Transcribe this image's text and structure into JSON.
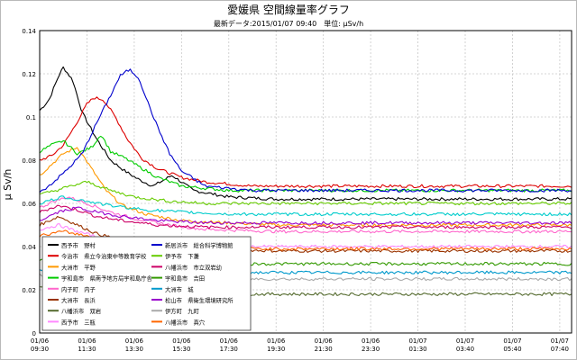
{
  "chart_data": {
    "type": "line",
    "title": "愛媛県 空間線量率グラフ",
    "subtitle": "最新データ:2015/01/07 09:40　単位: μSv/h",
    "ylabel": "μ Sv/h",
    "xlabel": "",
    "ylim": [
      0,
      0.14
    ],
    "yticks": [
      "0",
      "0.02",
      "0.04",
      "0.06",
      "0.08",
      "0.1",
      "0.12",
      "0.14"
    ],
    "x_range": [
      0,
      22.5
    ],
    "xticks": [
      {
        "h": 0,
        "line1": "01/06",
        "line2": "09:30"
      },
      {
        "h": 2,
        "line1": "01/06",
        "line2": "11:30"
      },
      {
        "h": 4,
        "line1": "01/06",
        "line2": "13:30"
      },
      {
        "h": 6,
        "line1": "01/06",
        "line2": "15:30"
      },
      {
        "h": 8,
        "line1": "01/06",
        "line2": "17:30"
      },
      {
        "h": 10,
        "line1": "01/06",
        "line2": "19:30"
      },
      {
        "h": 12,
        "line1": "01/06",
        "line2": "21:30"
      },
      {
        "h": 14,
        "line1": "01/06",
        "line2": "23:30"
      },
      {
        "h": 16,
        "line1": "01/07",
        "line2": "01:30"
      },
      {
        "h": 18,
        "line1": "01/07",
        "line2": "03:40"
      },
      {
        "h": 20,
        "line1": "01/07",
        "line2": "05:40"
      },
      {
        "h": 22,
        "line1": "01/07",
        "line2": "07:40"
      }
    ],
    "grid": true,
    "legend_position": "bottom-left",
    "series": [
      {
        "name": "西予市　野村",
        "color": "#000000",
        "x": [
          0,
          0.4,
          0.8,
          1.0,
          1.4,
          1.8,
          2.4,
          3.0,
          3.6,
          4.2,
          4.8,
          5.6,
          6.5,
          8,
          10,
          14,
          18,
          22.5
        ],
        "values": [
          0.103,
          0.108,
          0.119,
          0.123,
          0.117,
          0.102,
          0.09,
          0.08,
          0.075,
          0.071,
          0.068,
          0.073,
          0.066,
          0.063,
          0.062,
          0.062,
          0.062,
          0.062
        ]
      },
      {
        "name": "今治市　県立今治東中等教育学校",
        "color": "#dd0000",
        "x": [
          0,
          0.5,
          1.0,
          1.5,
          2.0,
          2.3,
          2.7,
          3.2,
          3.7,
          4.3,
          5.0,
          6.0,
          7.0,
          9.0,
          12,
          16,
          22.5
        ],
        "values": [
          0.08,
          0.082,
          0.087,
          0.096,
          0.106,
          0.109,
          0.108,
          0.1,
          0.09,
          0.081,
          0.076,
          0.072,
          0.07,
          0.068,
          0.068,
          0.068,
          0.068
        ]
      },
      {
        "name": "大洲市　平野",
        "color": "#ff9900",
        "x": [
          0,
          0.5,
          1.0,
          1.6,
          2.2,
          2.8,
          3.5,
          4.5,
          6.0,
          8.0,
          10,
          14,
          18,
          22.5
        ],
        "values": [
          0.073,
          0.078,
          0.083,
          0.086,
          0.076,
          0.066,
          0.059,
          0.055,
          0.052,
          0.051,
          0.05,
          0.05,
          0.05,
          0.05
        ]
      },
      {
        "name": "宇和島市　県南予地方局宇和島庁舎",
        "color": "#00cc00",
        "x": [
          0,
          0.5,
          1.0,
          1.6,
          2.2,
          2.6,
          3.0,
          3.6,
          4.2,
          5.0,
          6.0,
          8.0,
          12,
          16,
          22.5
        ],
        "values": [
          0.084,
          0.087,
          0.089,
          0.083,
          0.086,
          0.092,
          0.084,
          0.081,
          0.077,
          0.072,
          0.068,
          0.066,
          0.066,
          0.066,
          0.066
        ]
      },
      {
        "name": "内子町　内子",
        "color": "#ff66cc",
        "x": [
          0,
          0.6,
          1.2,
          2.0,
          3.0,
          4.0,
          5.5,
          7.0,
          10,
          14,
          22.5
        ],
        "values": [
          0.058,
          0.061,
          0.063,
          0.06,
          0.056,
          0.053,
          0.05,
          0.048,
          0.047,
          0.047,
          0.047
        ]
      },
      {
        "name": "大洲市　長浜",
        "color": "#993300",
        "x": [
          0,
          0.8,
          1.6,
          2.4,
          3.5,
          5.0,
          7.0,
          10,
          14,
          22.5
        ],
        "values": [
          0.05,
          0.054,
          0.05,
          0.046,
          0.043,
          0.04,
          0.039,
          0.038,
          0.038,
          0.038
        ]
      },
      {
        "name": "八幡浜市　双岩",
        "color": "#556b2f",
        "x": [
          0,
          1.0,
          2.0,
          3.0,
          4.5,
          6.0,
          8,
          12,
          16,
          22.5
        ],
        "values": [
          0.022,
          0.021,
          0.02,
          0.019,
          0.018,
          0.018,
          0.018,
          0.018,
          0.018,
          0.018
        ]
      },
      {
        "name": "西予市　三瓶",
        "color": "#ff88ff",
        "x": [
          0,
          0.8,
          1.6,
          2.6,
          4.0,
          6.0,
          9.0,
          14,
          22.5
        ],
        "values": [
          0.048,
          0.05,
          0.047,
          0.044,
          0.042,
          0.041,
          0.04,
          0.04,
          0.04
        ]
      },
      {
        "name": "新居浜市　総合科学博物館",
        "color": "#0000cc",
        "x": [
          0,
          0.6,
          1.2,
          1.8,
          2.4,
          3.0,
          3.4,
          3.8,
          4.2,
          4.6,
          5.0,
          5.5,
          6.0,
          7.0,
          9.0,
          12,
          16,
          22.5
        ],
        "values": [
          0.065,
          0.07,
          0.076,
          0.083,
          0.097,
          0.11,
          0.119,
          0.122,
          0.118,
          0.106,
          0.095,
          0.083,
          0.075,
          0.068,
          0.066,
          0.066,
          0.066,
          0.066
        ]
      },
      {
        "name": "伊予市　下灘",
        "color": "#66cc00",
        "x": [
          0,
          1.0,
          2.0,
          3.0,
          4.0,
          5.5,
          7.0,
          10,
          14,
          22.5
        ],
        "values": [
          0.064,
          0.067,
          0.07,
          0.066,
          0.063,
          0.061,
          0.06,
          0.06,
          0.06,
          0.06
        ]
      },
      {
        "name": "八幡浜市　市立双岩幼",
        "color": "#cc0066",
        "x": [
          0,
          0.8,
          1.6,
          2.4,
          3.5,
          5.0,
          7.0,
          10,
          14,
          22.5
        ],
        "values": [
          0.056,
          0.059,
          0.057,
          0.054,
          0.052,
          0.05,
          0.049,
          0.049,
          0.049,
          0.049
        ]
      },
      {
        "name": "宇和島市　吉田",
        "color": "#339900",
        "x": [
          0,
          1.0,
          2.0,
          3.0,
          4.5,
          6.0,
          8,
          12,
          16,
          22.5
        ],
        "values": [
          0.034,
          0.035,
          0.034,
          0.033,
          0.032,
          0.032,
          0.032,
          0.032,
          0.032,
          0.032
        ]
      },
      {
        "name": "大洲市　城",
        "color": "#0099cc",
        "x": [
          0,
          1.0,
          2.0,
          3.0,
          4.5,
          6.0,
          8,
          12,
          16,
          22.5
        ],
        "values": [
          0.029,
          0.03,
          0.029,
          0.028,
          0.028,
          0.028,
          0.028,
          0.028,
          0.028,
          0.028
        ]
      },
      {
        "name": "松山市　県衛生環境研究所",
        "color": "#9900cc",
        "x": [
          0,
          0.8,
          1.6,
          2.4,
          3.5,
          5.0,
          7.0,
          10,
          14,
          22.5
        ],
        "values": [
          0.052,
          0.056,
          0.058,
          0.056,
          0.054,
          0.052,
          0.051,
          0.051,
          0.051,
          0.051
        ]
      },
      {
        "name": "伊方町　九町",
        "color": "#aaaaaa",
        "x": [
          0,
          1.0,
          2.0,
          3.0,
          4.5,
          6.0,
          8,
          12,
          16,
          22.5
        ],
        "values": [
          0.027,
          0.026,
          0.025,
          0.025,
          0.025,
          0.025,
          0.025,
          0.025,
          0.025,
          0.025
        ]
      },
      {
        "name": "八幡浜市　真穴",
        "color": "#ff6600",
        "x": [
          0,
          1.0,
          2.0,
          3.0,
          4.5,
          6.0,
          8,
          12,
          16,
          22.5
        ],
        "values": [
          0.045,
          0.047,
          0.045,
          0.043,
          0.041,
          0.04,
          0.039,
          0.039,
          0.039,
          0.039
        ]
      },
      {
        "name": "",
        "color": "#00cccc",
        "x": [
          0,
          1.0,
          2.0,
          3.0,
          4.5,
          6.0,
          8,
          12,
          16,
          22.5
        ],
        "values": [
          0.06,
          0.063,
          0.061,
          0.059,
          0.057,
          0.056,
          0.055,
          0.055,
          0.055,
          0.055
        ]
      }
    ]
  }
}
